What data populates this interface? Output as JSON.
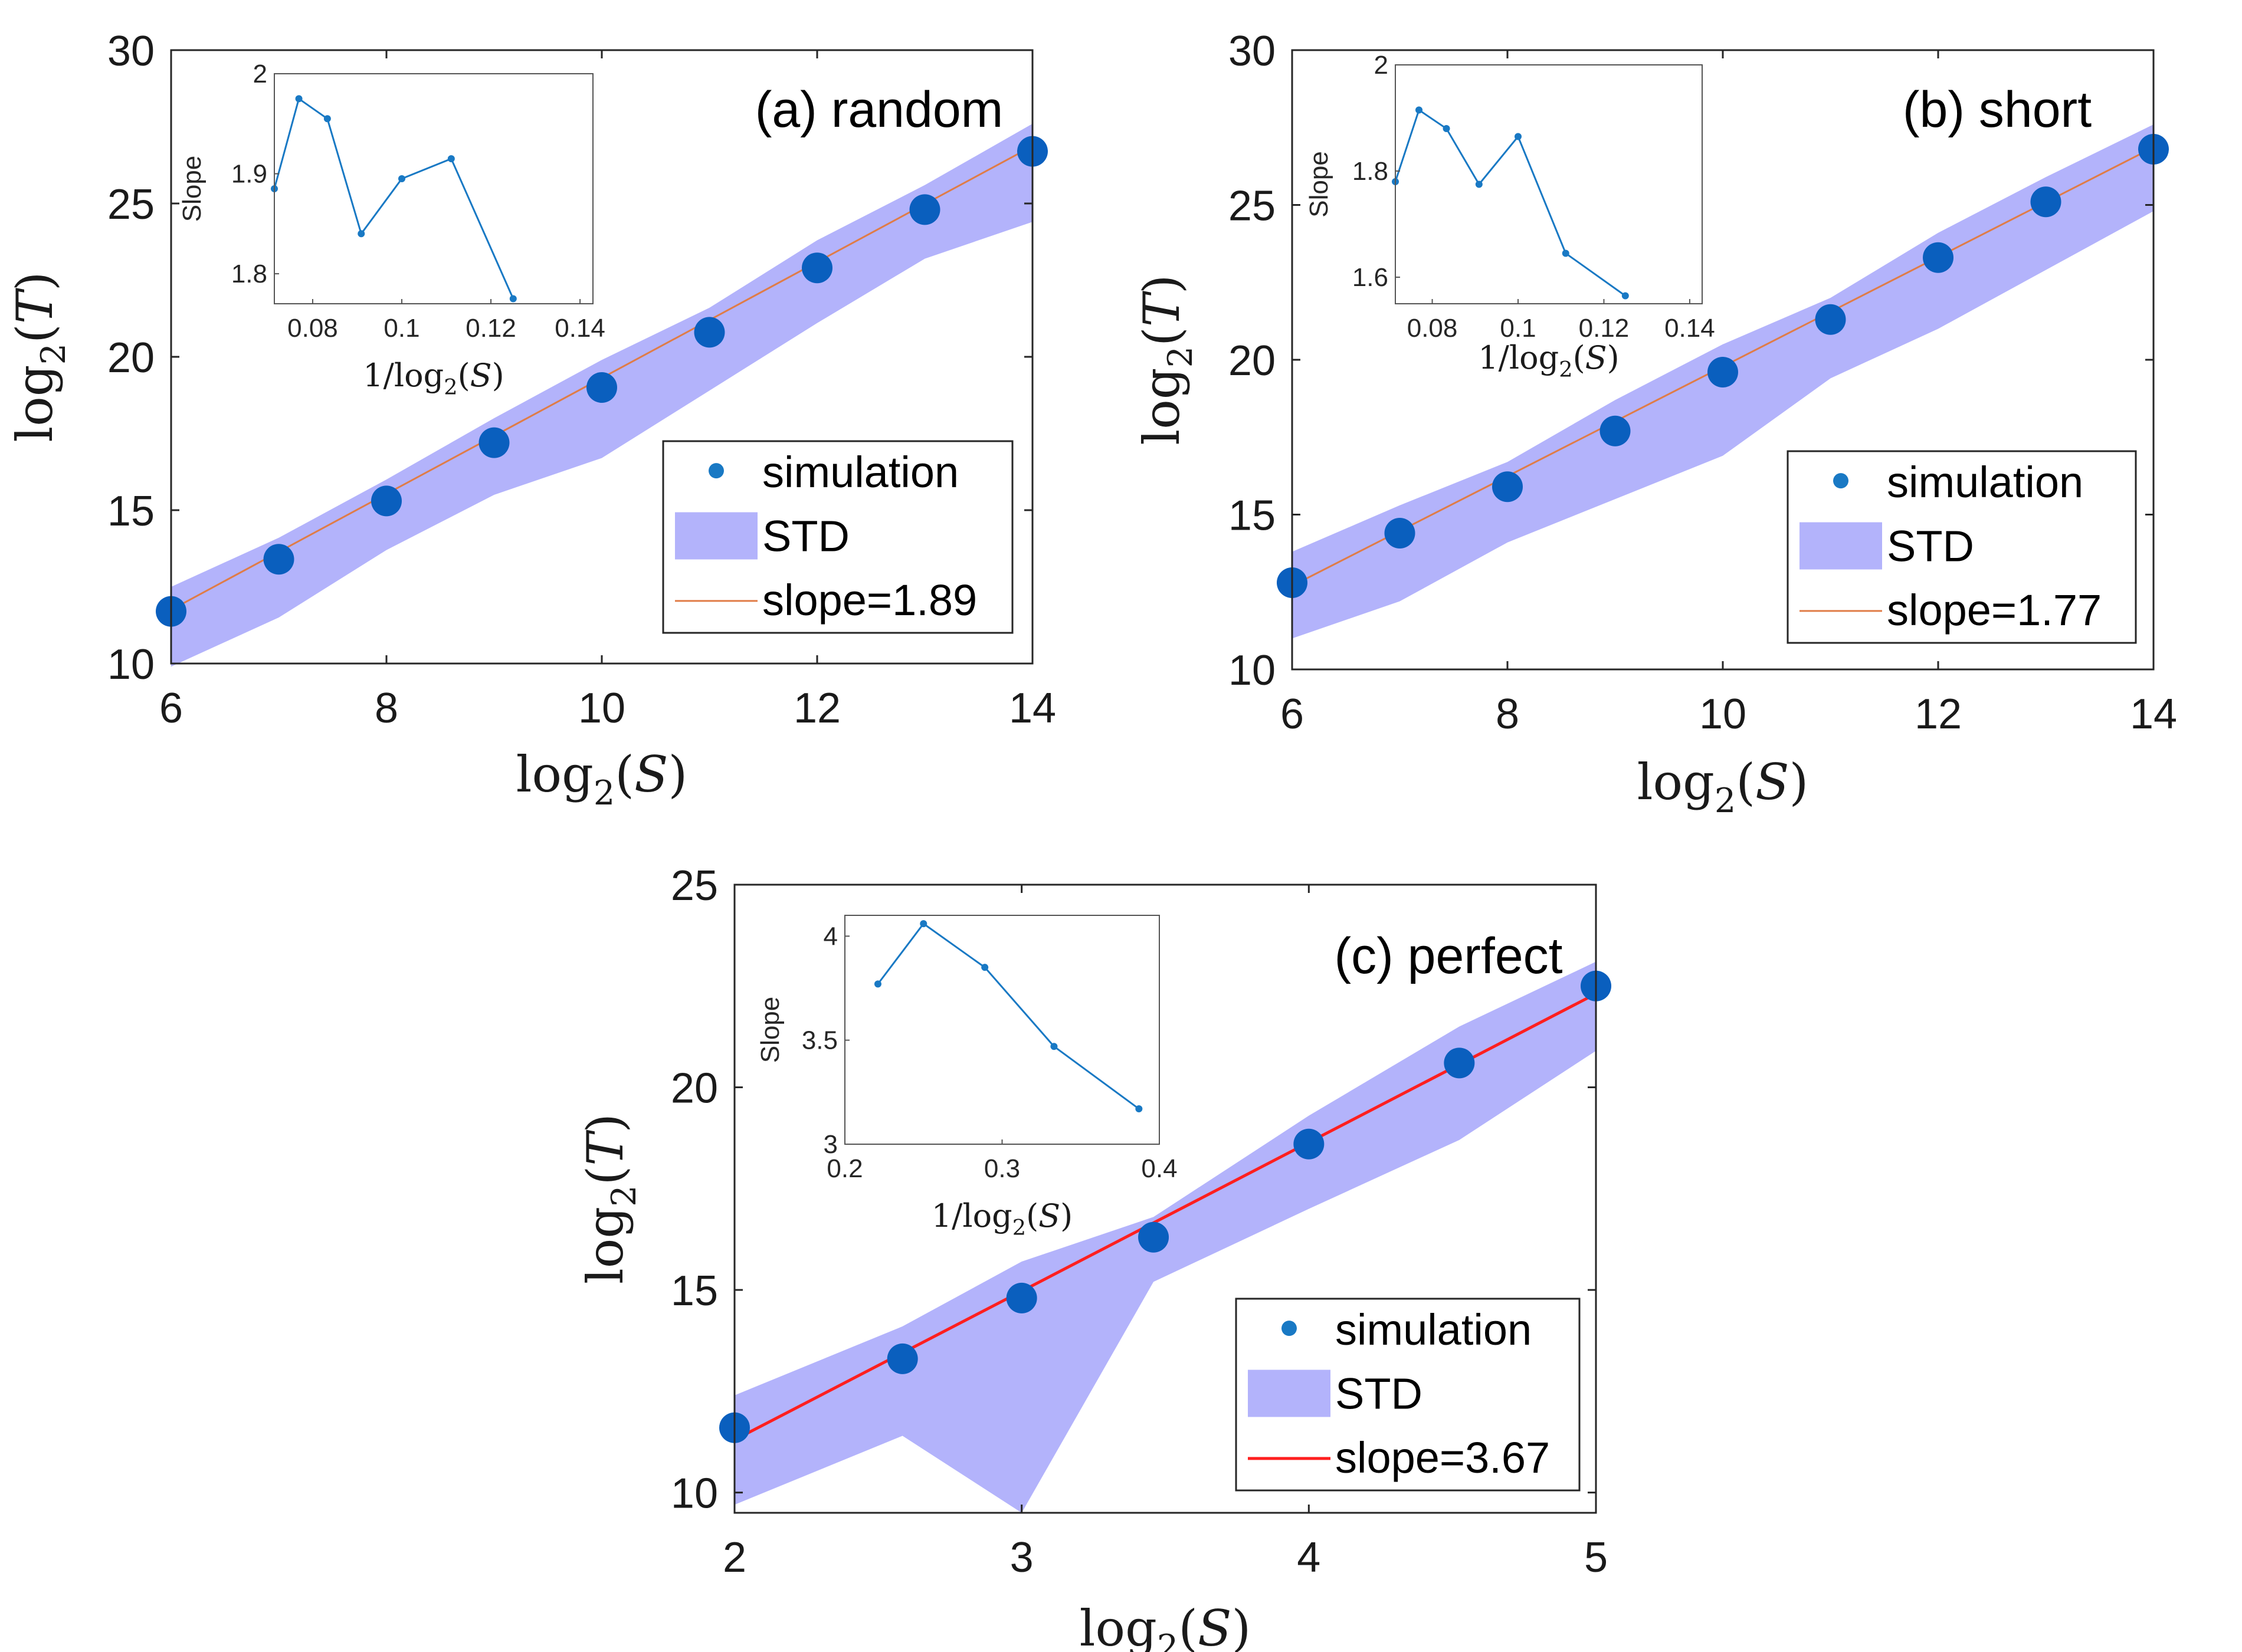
{
  "colors": {
    "band": "#b3b3fb",
    "point": "#0a5fbe",
    "fit_light": "#e07c47",
    "fit_red": "#ff1f1f",
    "inset_line": "#1979c4",
    "axis": "#262626"
  },
  "chart_data": [
    {
      "id": "a",
      "type": "line",
      "annotation": "(a)  random",
      "xlabel": "log2(S)",
      "ylabel": "log2(T)",
      "xlim": [
        6,
        14
      ],
      "ylim": [
        10,
        30
      ],
      "xticks": [
        6,
        8,
        10,
        12,
        14
      ],
      "yticks": [
        10,
        15,
        20,
        25,
        30
      ],
      "x": [
        6,
        7,
        8,
        9,
        10,
        11,
        12,
        13,
        14
      ],
      "simulation": [
        11.7,
        13.4,
        15.3,
        17.2,
        19.0,
        20.8,
        22.9,
        24.8,
        26.7
      ],
      "std_upper": [
        12.5,
        14.1,
        16.0,
        18.0,
        19.9,
        21.6,
        23.8,
        25.6,
        27.6
      ],
      "std_lower": [
        9.9,
        11.5,
        13.7,
        15.5,
        16.7,
        18.9,
        21.1,
        23.2,
        24.4
      ],
      "fit_slope": 1.89,
      "fit_intercept": 0.41,
      "legend": {
        "simulation": "simulation",
        "std": "STD",
        "fit": "slope=1.89"
      },
      "inset": {
        "ylabel": "Slope",
        "xlabel": "1/log2(S)",
        "xlim": [
          0.0714,
          0.1429
        ],
        "ylim": [
          1.77,
          2.0
        ],
        "xticks": [
          0.08,
          0.1,
          0.12,
          0.14
        ],
        "xtick_labels": [
          "0.08",
          "0.1",
          "0.12",
          "0.14"
        ],
        "yticks": [
          1.8,
          1.9,
          2.0
        ],
        "ytick_labels": [
          "1.8",
          "1.9",
          "2"
        ],
        "x": [
          0.0714,
          0.0769,
          0.0833,
          0.0909,
          0.1,
          0.1111,
          0.125,
          0.1429
        ],
        "y": [
          1.885,
          1.975,
          1.955,
          1.84,
          1.895,
          1.915,
          1.775,
          null
        ]
      }
    },
    {
      "id": "b",
      "type": "line",
      "annotation": "(b)  short",
      "xlabel": "log2(S)",
      "ylabel": "log2(T)",
      "xlim": [
        6,
        14
      ],
      "ylim": [
        10,
        30
      ],
      "xticks": [
        6,
        8,
        10,
        12,
        14
      ],
      "yticks": [
        10,
        15,
        20,
        25,
        30
      ],
      "x": [
        6,
        7,
        8,
        9,
        10,
        11,
        12,
        13,
        14
      ],
      "simulation": [
        12.8,
        14.4,
        15.9,
        17.7,
        19.6,
        21.3,
        23.3,
        25.1,
        26.8
      ],
      "std_upper": [
        13.8,
        15.3,
        16.7,
        18.7,
        20.5,
        22.0,
        24.1,
        25.9,
        27.6
      ],
      "std_lower": [
        11.0,
        12.2,
        14.1,
        15.5,
        16.9,
        19.4,
        21.0,
        22.9,
        24.8
      ],
      "fit_slope": 1.77,
      "fit_intercept": 2.08,
      "legend": {
        "simulation": "simulation",
        "std": "STD",
        "fit": "slope=1.77"
      },
      "inset": {
        "ylabel": "Slope",
        "xlabel": "1/log2(S)",
        "xlim": [
          0.0714,
          0.1429
        ],
        "ylim": [
          1.55,
          2.0
        ],
        "xticks": [
          0.08,
          0.1,
          0.12,
          0.14
        ],
        "xtick_labels": [
          "0.08",
          "0.1",
          "0.12",
          "0.14"
        ],
        "yticks": [
          1.6,
          1.8,
          2.0
        ],
        "ytick_labels": [
          "1.6",
          "1.8",
          "2"
        ],
        "x": [
          0.0714,
          0.0769,
          0.0833,
          0.0909,
          0.1,
          0.1111,
          0.125,
          0.1429
        ],
        "y": [
          1.78,
          1.915,
          1.88,
          1.775,
          1.865,
          1.645,
          1.565,
          null
        ]
      }
    },
    {
      "id": "c",
      "type": "line",
      "annotation": "(c)  perfect",
      "xlabel": "log2(S)",
      "ylabel": "log2(T)",
      "xlim": [
        2,
        5
      ],
      "ylim": [
        9.5,
        25
      ],
      "xticks": [
        2,
        3,
        4,
        5
      ],
      "yticks": [
        10,
        15,
        20,
        25
      ],
      "x": [
        2,
        2.585,
        3,
        3.459,
        4,
        4.524,
        5
      ],
      "simulation": [
        11.6,
        13.3,
        14.8,
        16.3,
        18.6,
        20.6,
        22.5
      ],
      "std_upper": [
        12.4,
        14.1,
        15.7,
        16.8,
        19.3,
        21.5,
        23.1
      ],
      "std_lower": [
        9.7,
        11.4,
        9.5,
        15.2,
        17.0,
        18.7,
        20.9
      ],
      "fit_slope": 3.67,
      "fit_intercept": 3.96,
      "legend": {
        "simulation": "simulation",
        "std": "STD",
        "fit": "slope=3.67"
      },
      "inset": {
        "ylabel": "Slope",
        "xlabel": "1/log2(S)",
        "xlim": [
          0.2,
          0.4
        ],
        "ylim": [
          3.0,
          4.1
        ],
        "xticks": [
          0.2,
          0.3,
          0.4
        ],
        "xtick_labels": [
          "0.2",
          "0.3",
          "0.4"
        ],
        "yticks": [
          3.0,
          3.5,
          4.0
        ],
        "ytick_labels": [
          "3",
          "3.5",
          "4"
        ],
        "x": [
          0.221,
          0.25,
          0.289,
          0.333,
          0.387
        ],
        "y": [
          3.77,
          4.06,
          3.85,
          3.47,
          3.17
        ]
      }
    }
  ]
}
